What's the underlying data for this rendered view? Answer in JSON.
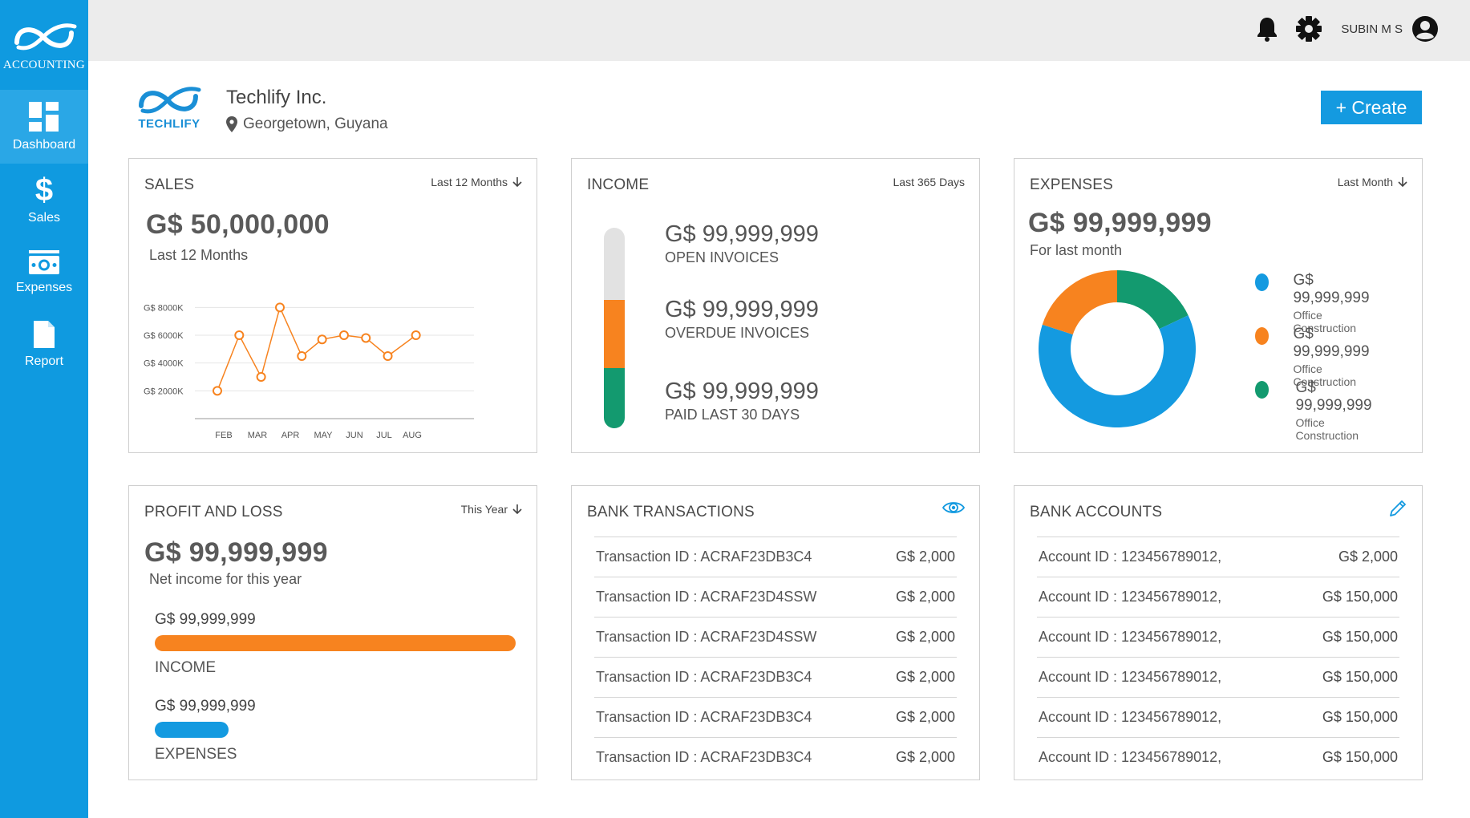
{
  "brand": {
    "label": "ACCOUNTING"
  },
  "nav": [
    {
      "label": "Dashboard"
    },
    {
      "label": "Sales"
    },
    {
      "label": "Expenses"
    },
    {
      "label": "Report"
    }
  ],
  "topbar": {
    "user_name": "SUBIN M S"
  },
  "company": {
    "logo_text": "TECHLIFY",
    "name": "Techlify Inc.",
    "location": "Georgetown, Guyana"
  },
  "create_button": "+ Create",
  "sales": {
    "title": "SALES",
    "filter": "Last 12 Months",
    "amount": "G$ 50,000,000",
    "subtitle": "Last 12 Months"
  },
  "chart_data": {
    "type": "line",
    "categories": [
      "FEB",
      "MAR",
      "APR",
      "MAY",
      "JUN",
      "JUL",
      "AUG"
    ],
    "y_tick_labels": [
      "G$ 8000K",
      "G$ 6000K",
      "G$ 4000K",
      "G$ 2000K"
    ],
    "y_ticks": [
      8000,
      6000,
      4000,
      2000
    ],
    "ylim": [
      0,
      9000
    ],
    "points": [
      {
        "x": 0.0,
        "y": 2000
      },
      {
        "x": 0.7,
        "y": 6000
      },
      {
        "x": 1.4,
        "y": 3000
      },
      {
        "x": 2.0,
        "y": 8000
      },
      {
        "x": 2.7,
        "y": 4500
      },
      {
        "x": 3.35,
        "y": 5700
      },
      {
        "x": 4.05,
        "y": 6000
      },
      {
        "x": 4.75,
        "y": 5800
      },
      {
        "x": 5.45,
        "y": 4500
      },
      {
        "x": 6.35,
        "y": 6000
      }
    ],
    "color": "#f7831f",
    "grid": true
  },
  "income": {
    "title": "INCOME",
    "filter": "Last 365 Days",
    "items": [
      {
        "amount": "G$ 99,999,999",
        "label": "OPEN INVOICES",
        "color": "#e2e2e2",
        "share": 0.36
      },
      {
        "amount": "G$ 99,999,999",
        "label": "OVERDUE INVOICES",
        "color": "#f7831f",
        "share": 0.34
      },
      {
        "amount": "G$ 99,999,999",
        "label": "PAID LAST 30 DAYS",
        "color": "#139a6f",
        "share": 0.3
      }
    ]
  },
  "expenses": {
    "title": "EXPENSES",
    "filter": "Last Month",
    "amount": "G$ 99,999,999",
    "subtitle": "For last month",
    "slices": [
      {
        "amount": "G$ 99,999,999",
        "label": "Office Construction",
        "color": "#149ae0",
        "share": 0.62
      },
      {
        "amount": "G$ 99,999,999",
        "label": "Office Construction",
        "color": "#f7831f",
        "share": 0.2
      },
      {
        "amount": "G$ 99,999,999",
        "label": "Office Construction",
        "color": "#139a6f",
        "share": 0.18
      }
    ]
  },
  "profit_loss": {
    "title": "PROFIT AND LOSS",
    "filter": "This Year",
    "amount": "G$ 99,999,999",
    "subtitle": "Net income for this year",
    "rows": [
      {
        "value": "G$ 99,999,999",
        "label": "INCOME",
        "color": "#f7831f",
        "fill": 1.0
      },
      {
        "value": "G$ 99,999,999",
        "label": "EXPENSES",
        "color": "#149ae0",
        "fill": 0.2
      }
    ]
  },
  "bank_transactions": {
    "title": "BANK TRANSACTIONS",
    "rows": [
      {
        "id": "Transaction ID : ACRAF23DB3C4",
        "amount": "G$ 2,000"
      },
      {
        "id": "Transaction ID : ACRAF23D4SSW",
        "amount": "G$ 2,000"
      },
      {
        "id": "Transaction ID : ACRAF23D4SSW",
        "amount": "G$ 2,000"
      },
      {
        "id": "Transaction ID : ACRAF23DB3C4",
        "amount": "G$ 2,000"
      },
      {
        "id": "Transaction ID : ACRAF23DB3C4",
        "amount": "G$ 2,000"
      },
      {
        "id": "Transaction ID : ACRAF23DB3C4",
        "amount": "G$ 2,000"
      }
    ]
  },
  "bank_accounts": {
    "title": "BANK ACCOUNTS",
    "rows": [
      {
        "id": "Account ID : 123456789012,",
        "amount": "G$ 2,000"
      },
      {
        "id": "Account ID : 123456789012,",
        "amount": "G$ 150,000"
      },
      {
        "id": "Account ID : 123456789012,",
        "amount": "G$ 150,000"
      },
      {
        "id": "Account ID : 123456789012,",
        "amount": "G$ 150,000"
      },
      {
        "id": "Account ID : 123456789012,",
        "amount": "G$ 150,000"
      },
      {
        "id": "Account ID : 123456789012,",
        "amount": "G$ 150,000"
      }
    ]
  }
}
